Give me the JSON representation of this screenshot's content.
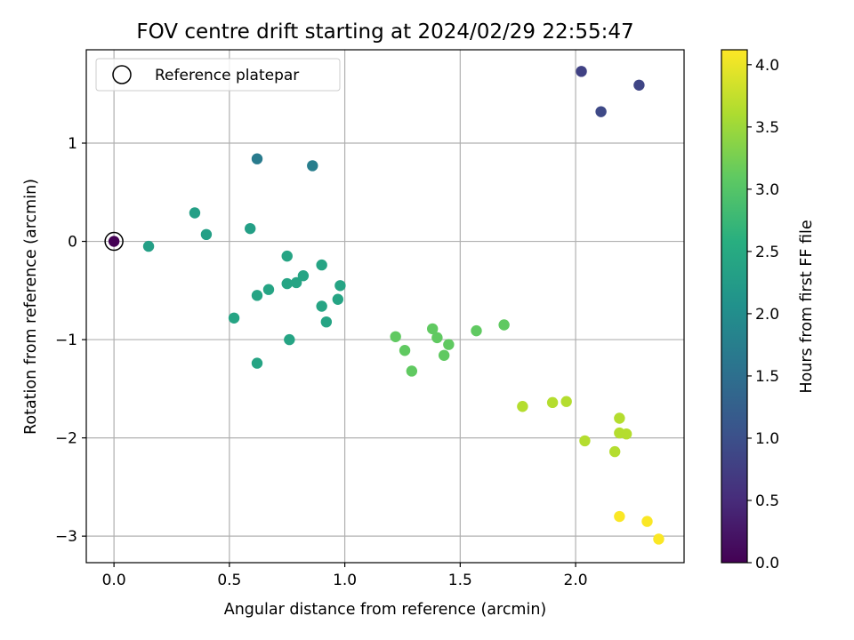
{
  "chart_data": {
    "type": "scatter",
    "title": "FOV centre drift starting at 2024/02/29 22:55:47",
    "xlabel": "Angular distance from reference (arcmin)",
    "ylabel": "Rotation from reference (arcmin)",
    "xlim": [
      -0.12,
      2.47
    ],
    "ylim": [
      -3.27,
      1.95
    ],
    "xticks": [
      0.0,
      0.5,
      1.0,
      1.5,
      2.0
    ],
    "xtick_labels": [
      "0.0",
      "0.5",
      "1.0",
      "1.5",
      "2.0"
    ],
    "yticks": [
      -3,
      -2,
      -1,
      0,
      1
    ],
    "ytick_labels": [
      "−3",
      "−2",
      "−1",
      "0",
      "1"
    ],
    "grid": true,
    "legend": {
      "placement": "top-left",
      "entries": [
        "Reference platepar"
      ]
    },
    "colorbar": {
      "label": "Hours from first FF file",
      "colormap": "viridis",
      "range": [
        0.0,
        4.12
      ],
      "ticks": [
        0.0,
        0.5,
        1.0,
        1.5,
        2.0,
        2.5,
        3.0,
        3.5,
        4.0
      ],
      "tick_labels": [
        "0.0",
        "0.5",
        "1.0",
        "1.5",
        "2.0",
        "2.5",
        "3.0",
        "3.5",
        "4.0"
      ]
    },
    "reference_point": {
      "x": 0.0,
      "y": 0.0,
      "hours": 0.0
    },
    "points": [
      {
        "x": 2.025,
        "y": 1.73,
        "hours": 0.8
      },
      {
        "x": 2.275,
        "y": 1.59,
        "hours": 0.85
      },
      {
        "x": 2.11,
        "y": 1.32,
        "hours": 0.9
      },
      {
        "x": 0.62,
        "y": 0.84,
        "hours": 1.7
      },
      {
        "x": 0.86,
        "y": 0.77,
        "hours": 1.75
      },
      {
        "x": 0.35,
        "y": 0.29,
        "hours": 2.3
      },
      {
        "x": 0.59,
        "y": 0.13,
        "hours": 2.3
      },
      {
        "x": 0.4,
        "y": 0.07,
        "hours": 2.3
      },
      {
        "x": 0.15,
        "y": -0.05,
        "hours": 2.3
      },
      {
        "x": 0.75,
        "y": -0.15,
        "hours": 2.4
      },
      {
        "x": 0.9,
        "y": -0.24,
        "hours": 2.4
      },
      {
        "x": 0.82,
        "y": -0.35,
        "hours": 2.4
      },
      {
        "x": 0.75,
        "y": -0.43,
        "hours": 2.4
      },
      {
        "x": 0.79,
        "y": -0.42,
        "hours": 2.4
      },
      {
        "x": 0.98,
        "y": -0.45,
        "hours": 2.4
      },
      {
        "x": 0.67,
        "y": -0.49,
        "hours": 2.4
      },
      {
        "x": 0.62,
        "y": -0.55,
        "hours": 2.4
      },
      {
        "x": 0.97,
        "y": -0.59,
        "hours": 2.4
      },
      {
        "x": 0.9,
        "y": -0.66,
        "hours": 2.4
      },
      {
        "x": 0.52,
        "y": -0.78,
        "hours": 2.4
      },
      {
        "x": 0.92,
        "y": -0.82,
        "hours": 2.4
      },
      {
        "x": 0.76,
        "y": -1.0,
        "hours": 2.4
      },
      {
        "x": 0.62,
        "y": -1.24,
        "hours": 2.4
      },
      {
        "x": 1.69,
        "y": -0.85,
        "hours": 3.1
      },
      {
        "x": 1.38,
        "y": -0.89,
        "hours": 3.1
      },
      {
        "x": 1.57,
        "y": -0.91,
        "hours": 3.1
      },
      {
        "x": 1.22,
        "y": -0.97,
        "hours": 3.1
      },
      {
        "x": 1.4,
        "y": -0.98,
        "hours": 3.1
      },
      {
        "x": 1.45,
        "y": -1.05,
        "hours": 3.1
      },
      {
        "x": 1.26,
        "y": -1.11,
        "hours": 3.1
      },
      {
        "x": 1.43,
        "y": -1.16,
        "hours": 3.1
      },
      {
        "x": 1.29,
        "y": -1.32,
        "hours": 3.1
      },
      {
        "x": 1.96,
        "y": -1.63,
        "hours": 3.65
      },
      {
        "x": 1.9,
        "y": -1.64,
        "hours": 3.65
      },
      {
        "x": 1.77,
        "y": -1.68,
        "hours": 3.65
      },
      {
        "x": 2.19,
        "y": -1.8,
        "hours": 3.65
      },
      {
        "x": 2.19,
        "y": -1.95,
        "hours": 3.65
      },
      {
        "x": 2.22,
        "y": -1.96,
        "hours": 3.65
      },
      {
        "x": 2.04,
        "y": -2.03,
        "hours": 3.65
      },
      {
        "x": 2.17,
        "y": -2.14,
        "hours": 3.65
      },
      {
        "x": 2.19,
        "y": -2.8,
        "hours": 4.1
      },
      {
        "x": 2.31,
        "y": -2.85,
        "hours": 4.1
      },
      {
        "x": 2.36,
        "y": -3.03,
        "hours": 4.1
      }
    ]
  }
}
